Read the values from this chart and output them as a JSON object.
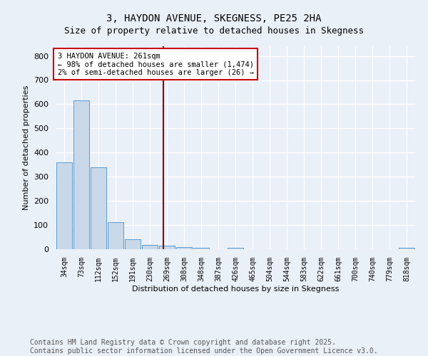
{
  "title": "3, HAYDON AVENUE, SKEGNESS, PE25 2HA",
  "subtitle": "Size of property relative to detached houses in Skegness",
  "xlabel": "Distribution of detached houses by size in Skegness",
  "ylabel": "Number of detached properties",
  "categories": [
    "34sqm",
    "73sqm",
    "112sqm",
    "152sqm",
    "191sqm",
    "230sqm",
    "269sqm",
    "308sqm",
    "348sqm",
    "387sqm",
    "426sqm",
    "465sqm",
    "504sqm",
    "544sqm",
    "583sqm",
    "622sqm",
    "661sqm",
    "700sqm",
    "740sqm",
    "779sqm",
    "818sqm"
  ],
  "values": [
    360,
    615,
    340,
    113,
    40,
    18,
    14,
    10,
    6,
    0,
    7,
    0,
    0,
    0,
    0,
    0,
    0,
    0,
    0,
    0,
    7
  ],
  "bar_color": "#c8d8e8",
  "bar_edge_color": "#5b9bd5",
  "vline_color": "#8b0000",
  "annotation_text": "3 HAYDON AVENUE: 261sqm\n← 98% of detached houses are smaller (1,474)\n2% of semi-detached houses are larger (26) →",
  "annotation_box_color": "#ffffff",
  "annotation_box_edge": "#cc0000",
  "ylim": [
    0,
    840
  ],
  "yticks": [
    0,
    100,
    200,
    300,
    400,
    500,
    600,
    700,
    800
  ],
  "footer_line1": "Contains HM Land Registry data © Crown copyright and database right 2025.",
  "footer_line2": "Contains public sector information licensed under the Open Government Licence v3.0.",
  "bg_color": "#eaf0f8",
  "plot_bg_color": "#eaf0f8",
  "grid_color": "#ffffff",
  "title_fontsize": 10,
  "footer_fontsize": 7
}
